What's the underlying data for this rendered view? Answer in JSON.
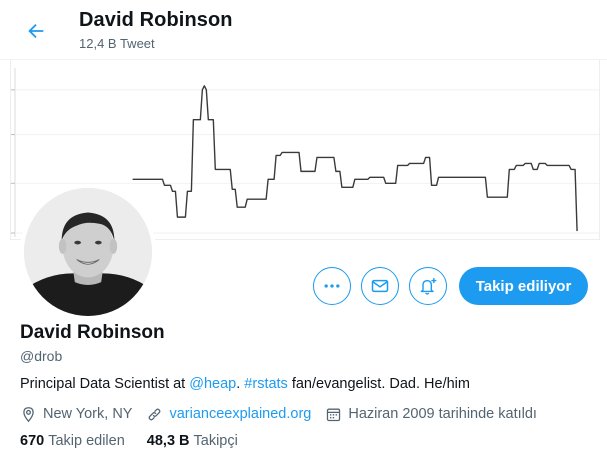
{
  "header": {
    "name": "David Robinson",
    "tweet_count": "12,4 B Tweet"
  },
  "profile": {
    "name": "David Robinson",
    "handle": "@drob",
    "bio": {
      "prefix": "Principal Data Scientist at ",
      "mention": "@heap",
      "sep": ".  ",
      "hashtag": "#rstats",
      "suffix": " fan/evangelist. Dad. He/him"
    },
    "location": "New York, NY",
    "website": "varianceexplained.org",
    "joined": "Haziran 2009 tarihinde katıldı"
  },
  "stats": {
    "following_count": "670",
    "following_label": "Takip edilen",
    "followers_count": "48,3 B",
    "followers_label": "Takipçi"
  },
  "actions": {
    "follow_label": "Takip ediliyor"
  },
  "icons": {
    "back": "arrow-left-icon",
    "more": "more-dots-icon",
    "message": "envelope-icon",
    "notify": "bell-plus-icon",
    "location": "location-pin-icon",
    "website": "link-icon",
    "joined": "calendar-icon"
  },
  "colors": {
    "accent": "#1d9bf0",
    "text": "#0f1419",
    "secondary": "#536471"
  }
}
